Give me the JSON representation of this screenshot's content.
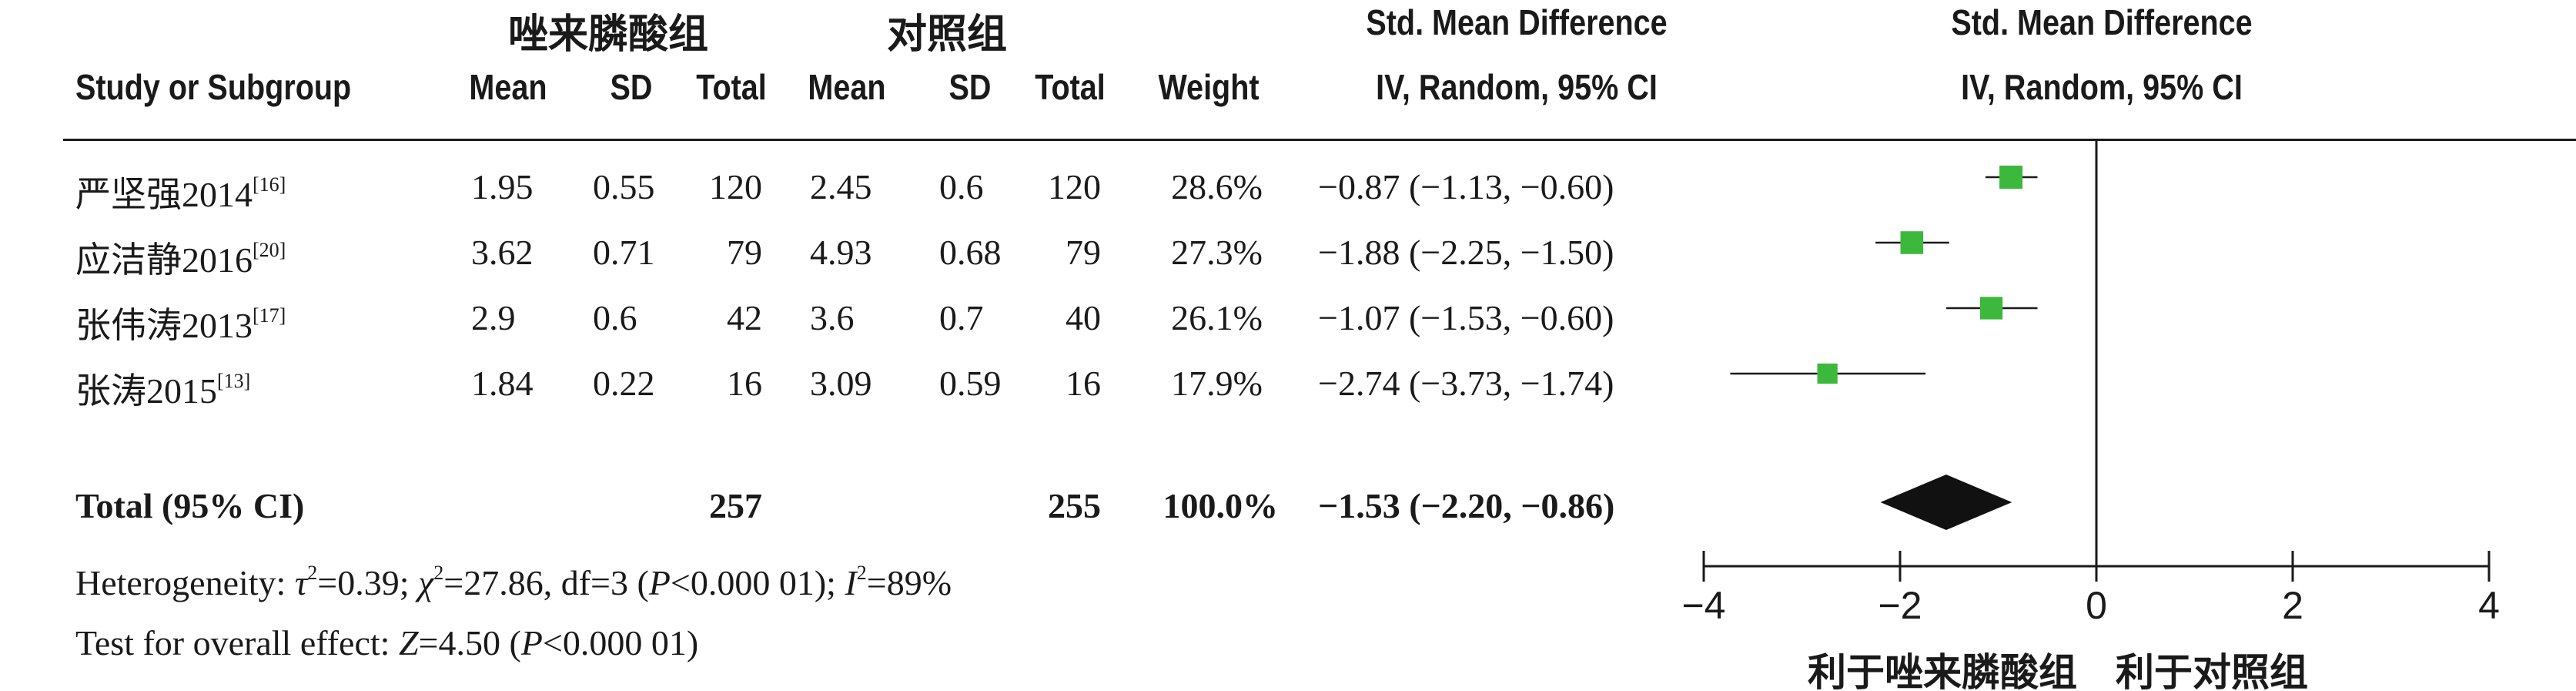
{
  "header": {
    "group_treatment": "唑来膦酸组",
    "group_control": "对照组",
    "col_study": "Study or Subgroup",
    "col_t_mean": "Mean",
    "col_t_sd": "SD",
    "col_t_total": "Total",
    "col_c_mean": "Mean",
    "col_c_sd": "SD",
    "col_c_total": "Total",
    "col_weight": "Weight",
    "col_smd_title": "Std. Mean Difference",
    "col_smd_method": "IV, Random, 95% CI",
    "plot_smd_title": "Std. Mean Difference",
    "plot_smd_method": "IV, Random, 95% CI"
  },
  "studies": [
    {
      "name": "严坚强2014",
      "ref": "[16]",
      "t_mean": "1.95",
      "t_sd": "0.55",
      "t_total": "120",
      "c_mean": "2.45",
      "c_sd": "0.6",
      "c_total": "120",
      "weight": "28.6%",
      "ci_text": "−0.87 (−1.13, −0.60)"
    },
    {
      "name": "应洁静2016",
      "ref": "[20]",
      "t_mean": "3.62",
      "t_sd": "0.71",
      "t_total": "79",
      "c_mean": "4.93",
      "c_sd": "0.68",
      "c_total": "79",
      "weight": "27.3%",
      "ci_text": "−1.88 (−2.25, −1.50)"
    },
    {
      "name": "张伟涛2013",
      "ref": "[17]",
      "t_mean": "2.9",
      "t_sd": "0.6",
      "t_total": "42",
      "c_mean": "3.6",
      "c_sd": "0.7",
      "c_total": "40",
      "weight": "26.1%",
      "ci_text": "−1.07 (−1.53, −0.60)"
    },
    {
      "name": "张涛2015",
      "ref": "[13]",
      "t_mean": "1.84",
      "t_sd": "0.22",
      "t_total": "16",
      "c_mean": "3.09",
      "c_sd": "0.59",
      "c_total": "16",
      "weight": "17.9%",
      "ci_text": "−2.74 (−3.73, −1.74)"
    }
  ],
  "total": {
    "label": "Total (95% CI)",
    "t_total": "257",
    "c_total": "255",
    "weight": "100.0%",
    "ci_text": "−1.53 (−2.20, −0.86)"
  },
  "heterogeneity": {
    "prefix": "Heterogeneity: ",
    "tau_symbol": "τ",
    "tau_value": "=0.39; ",
    "chi_symbol": "χ",
    "chi_value": "=27.86, df=3 (",
    "p_symbol": "P",
    "p_value": "<0.000 01); ",
    "i_symbol": "I",
    "i_value": "=89%"
  },
  "overall": {
    "prefix": "Test for overall effect: ",
    "z_symbol": "Z",
    "z_value": "=4.50 (",
    "p_symbol": "P",
    "p_value": "<0.000 01)"
  },
  "chart_data": {
    "type": "forest",
    "xlim": [
      -4,
      4
    ],
    "ticks": [
      -4,
      -2,
      0,
      2,
      4
    ],
    "tick_labels": [
      "−4",
      "−2",
      "0",
      "2",
      "4"
    ],
    "favours_left": "利于唑来膦酸组",
    "favours_right": "利于对照组",
    "marker_color": "#3cb93c",
    "studies": [
      {
        "name": "严坚强2014",
        "smd": -0.87,
        "lower": -1.13,
        "upper": -0.6,
        "weight": 28.6
      },
      {
        "name": "应洁静2016",
        "smd": -1.88,
        "lower": -2.25,
        "upper": -1.5,
        "weight": 27.3
      },
      {
        "name": "张伟涛2013",
        "smd": -1.07,
        "lower": -1.53,
        "upper": -0.6,
        "weight": 26.1
      },
      {
        "name": "张涛2015",
        "smd": -2.74,
        "lower": -3.73,
        "upper": -1.74,
        "weight": 17.9
      }
    ],
    "total": {
      "smd": -1.53,
      "lower": -2.2,
      "upper": -0.86
    }
  }
}
